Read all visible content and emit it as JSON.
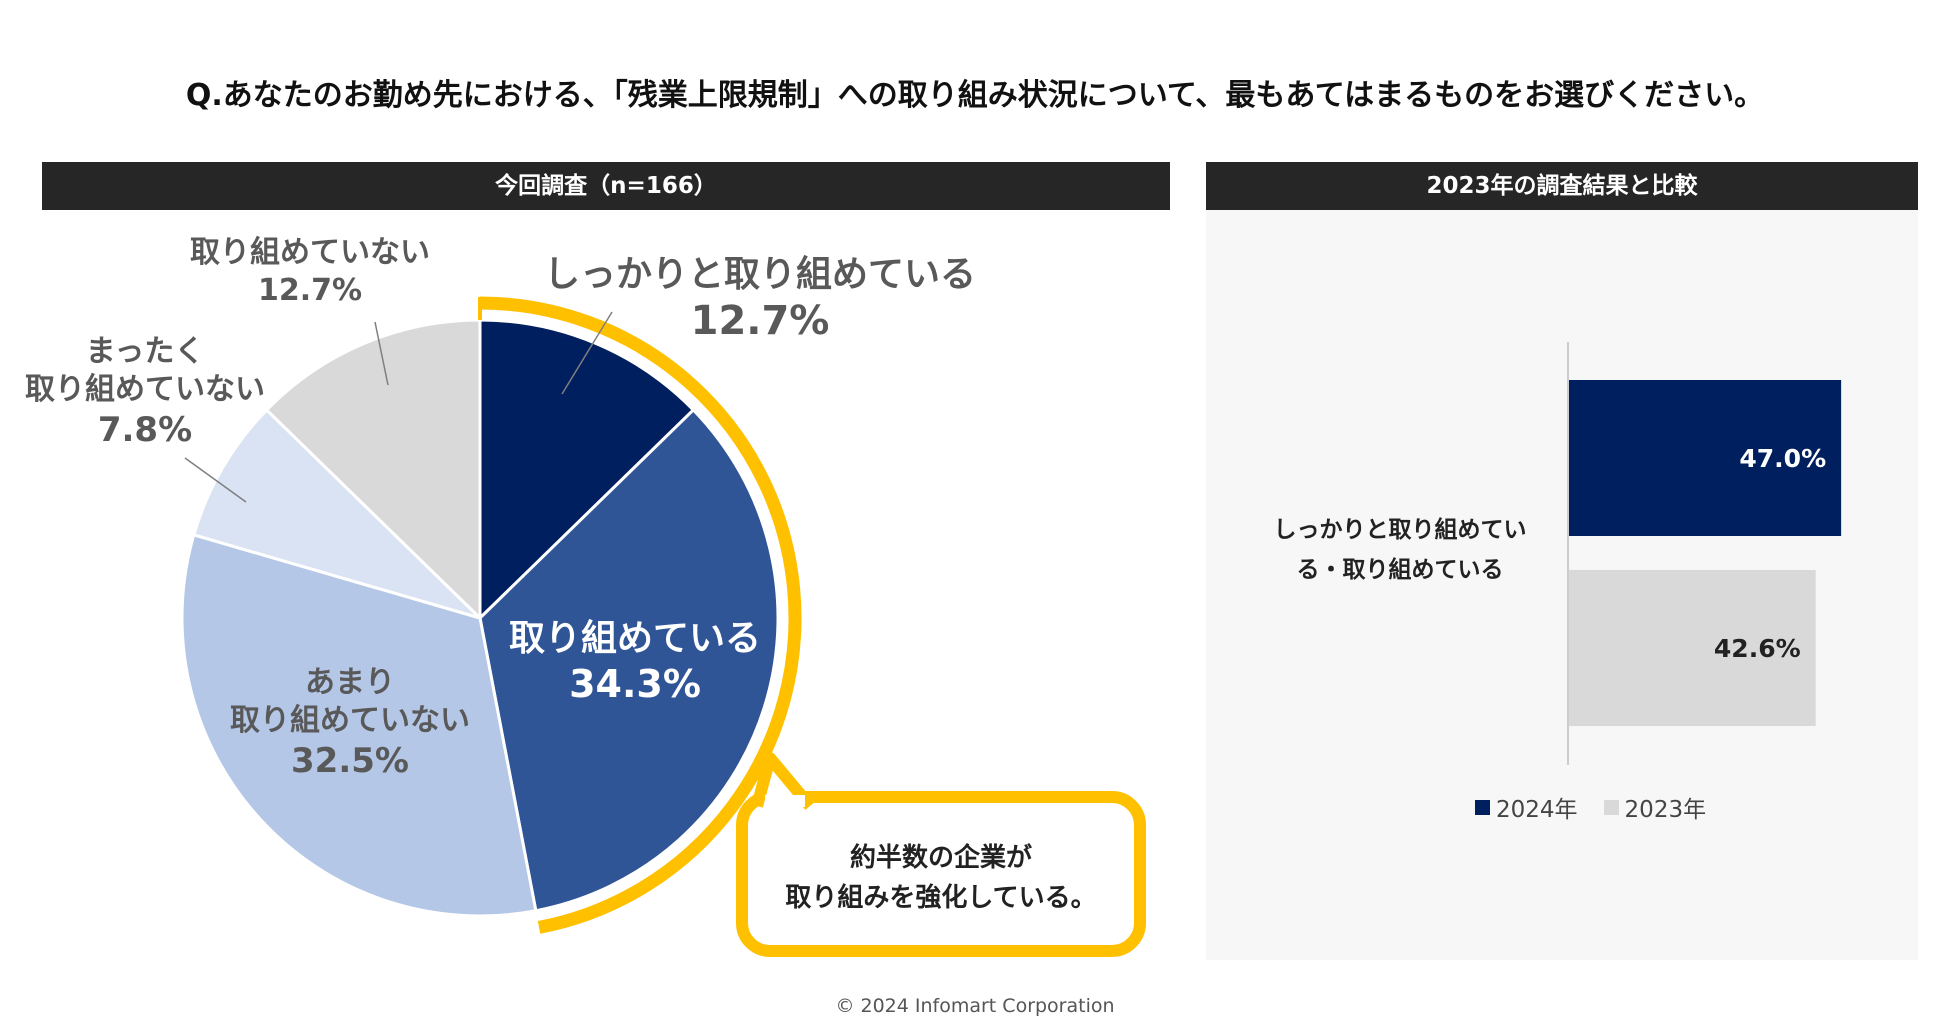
{
  "question": "Q.あなたのお勤め先における、「残業上限規制」への取り組み状況について、最もあてはまるものをお選びください。",
  "footer": "© 2024 Infomart Corporation",
  "callout": {
    "line1": "約半数の企業が",
    "line2": "取り組みを強化している。"
  },
  "colors": {
    "navy": "#001f5e",
    "blue": "#2f5597",
    "lightblue": "#b4c7e7",
    "palest": "#dae3f3",
    "gray": "#d9d9d9",
    "highlight": "#ffc000"
  },
  "chart_data": [
    {
      "type": "pie",
      "title": "今回調査（n=166）",
      "slices": [
        {
          "label": "しっかりと取り組めている",
          "value": 12.7,
          "display": "12.7%",
          "color": "#001f5e"
        },
        {
          "label": "取り組めている",
          "value": 34.3,
          "display": "34.3%",
          "color": "#2f5597"
        },
        {
          "label": "あまり取り組めていない",
          "label_lines": [
            "あまり",
            "取り組めていない"
          ],
          "value": 32.5,
          "display": "32.5%",
          "color": "#b4c7e7"
        },
        {
          "label": "まったく取り組めていない",
          "label_lines": [
            "まったく",
            "取り組めていない"
          ],
          "value": 7.8,
          "display": "7.8%",
          "color": "#dae3f3"
        },
        {
          "label": "取り組めていない",
          "value": 12.7,
          "display": "12.7%",
          "color": "#d9d9d9"
        }
      ]
    },
    {
      "type": "bar",
      "orientation": "horizontal",
      "title": "2023年の調査結果と比較",
      "category_lines": [
        "しっかりと取り組めてい",
        "る・取り組めている"
      ],
      "categories": [
        "しっかりと取り組めている・取り組めている"
      ],
      "series": [
        {
          "name": "2024年",
          "values": [
            47.0
          ],
          "display": "47.0%",
          "color": "#001f5e"
        },
        {
          "name": "2023年",
          "values": [
            42.6
          ],
          "display": "42.6%",
          "color": "#d9d9d9"
        }
      ],
      "xlim": [
        0,
        100
      ],
      "legend": "bottom"
    }
  ]
}
